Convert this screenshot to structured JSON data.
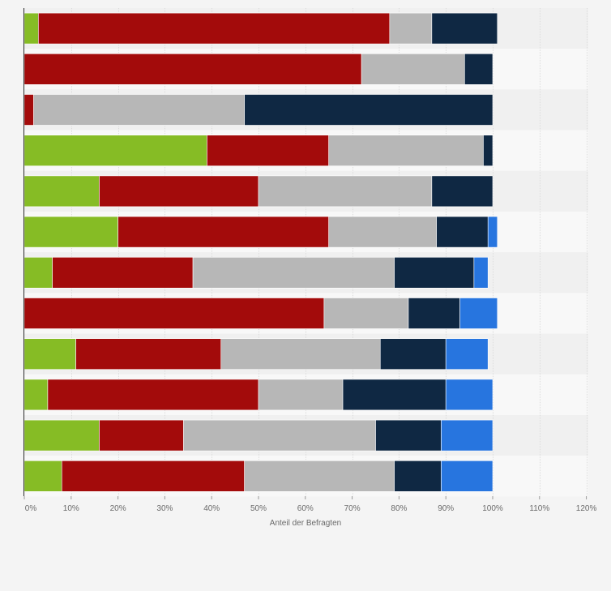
{
  "chart_data": {
    "type": "bar",
    "orientation": "horizontal",
    "stacked": true,
    "xlabel": "Anteil der Befragten",
    "xlim": [
      0,
      120
    ],
    "x_ticks": [
      "0%",
      "10%",
      "20%",
      "30%",
      "40%",
      "50%",
      "60%",
      "70%",
      "80%",
      "90%",
      "100%",
      "110%",
      "120%"
    ],
    "grid": true,
    "series": [
      {
        "color": "#86bc25",
        "values": [
          3,
          0,
          0,
          39,
          16,
          20,
          6,
          0,
          11,
          5,
          16,
          8
        ]
      },
      {
        "color": "#a30b0b",
        "values": [
          75,
          72,
          2,
          26,
          34,
          45,
          30,
          64,
          31,
          45,
          18,
          39
        ]
      },
      {
        "color": "#b7b7b7",
        "values": [
          9,
          22,
          45,
          33,
          37,
          23,
          43,
          18,
          34,
          18,
          41,
          32
        ]
      },
      {
        "color": "#0f2843",
        "values": [
          14,
          6,
          53,
          2,
          13,
          11,
          17,
          11,
          14,
          22,
          14,
          10
        ]
      },
      {
        "color": "#2775df",
        "values": [
          0,
          0,
          0,
          0,
          0,
          2,
          3,
          8,
          9,
          10,
          11,
          11
        ]
      }
    ]
  }
}
